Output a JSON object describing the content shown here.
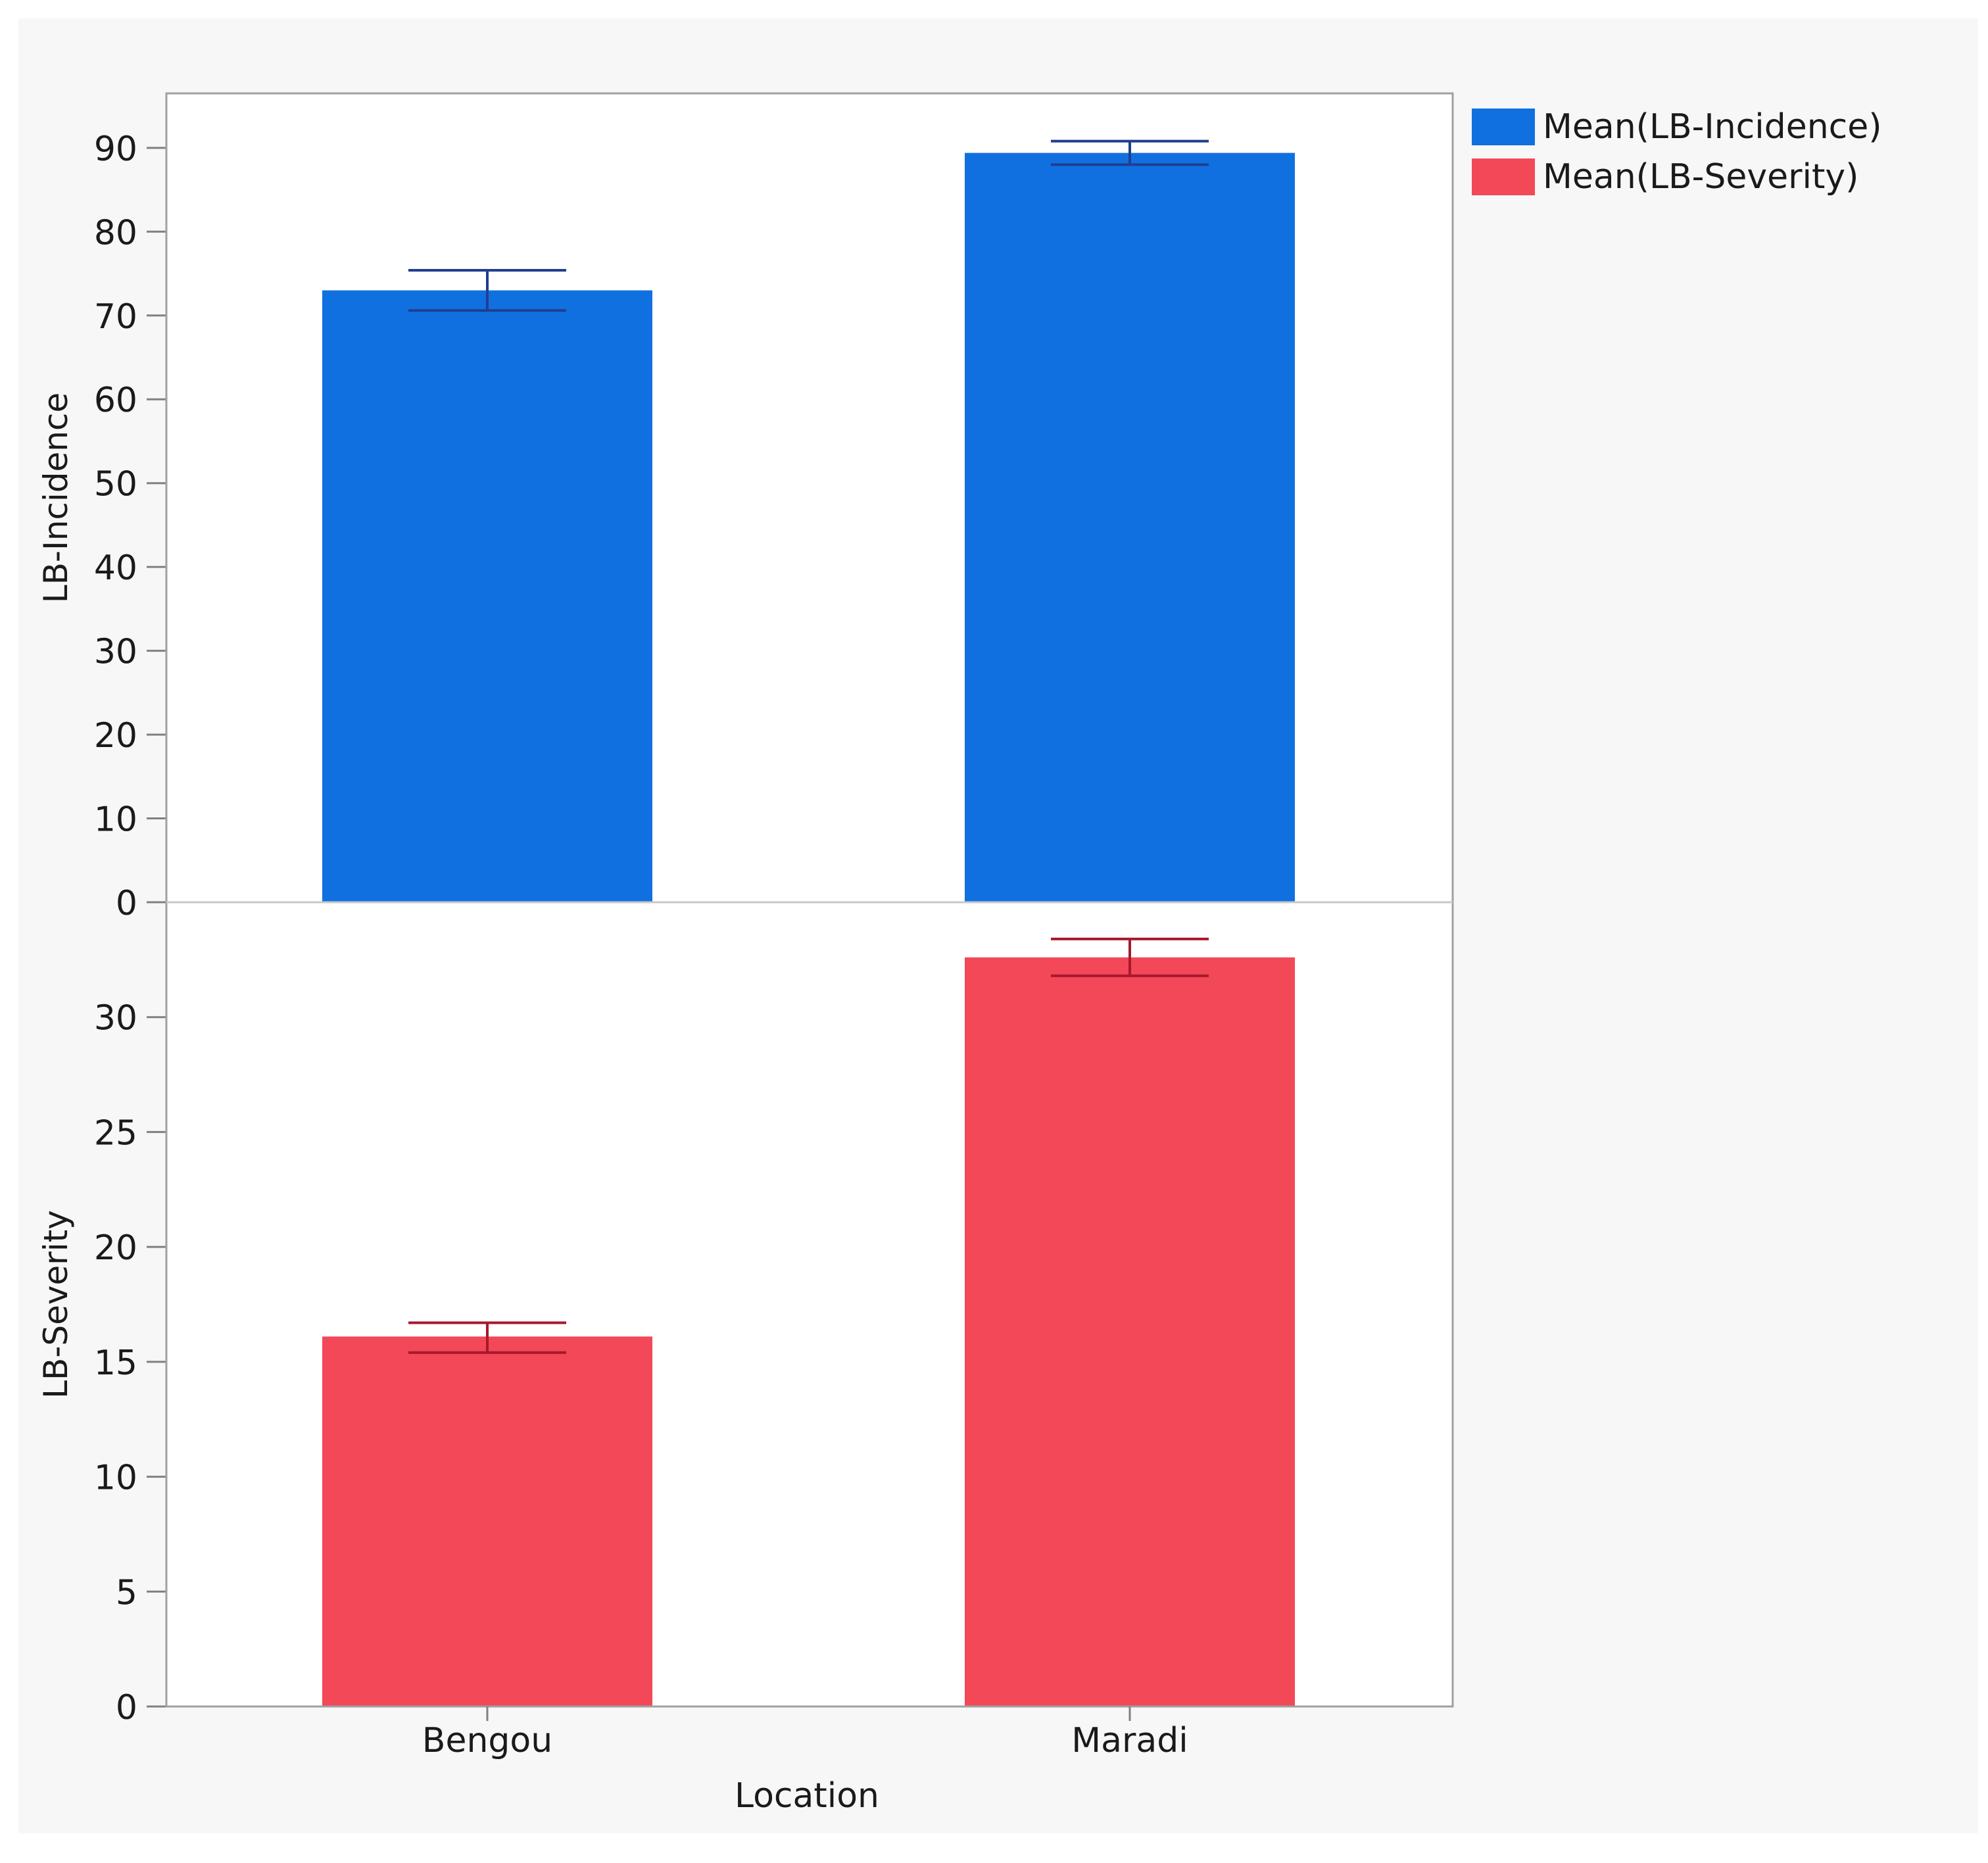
{
  "chart_data": {
    "type": "bar",
    "categories": [
      "Bengou",
      "Maradi"
    ],
    "xlabel": "Location",
    "legend": {
      "placement": "top-right",
      "entries": [
        {
          "label": "Mean(LB-Incidence)",
          "color": "#1170e0"
        },
        {
          "label": "Mean(LB-Severity)",
          "color": "#f24858"
        }
      ]
    },
    "panels": [
      {
        "ylabel": "LB-Incidence",
        "ylim": [
          0,
          96.5
        ],
        "yticks": [
          0,
          10,
          20,
          30,
          40,
          50,
          60,
          70,
          80,
          90
        ],
        "color": "#1170e0",
        "error_color": "#1f3f8f",
        "values": [
          73.0,
          89.4
        ],
        "error_low": [
          70.6,
          88.0
        ],
        "error_high": [
          75.4,
          90.8
        ]
      },
      {
        "ylabel": "LB-Severity",
        "ylim": [
          0,
          35
        ],
        "yticks": [
          0,
          5,
          10,
          15,
          20,
          25,
          30
        ],
        "color": "#f24858",
        "error_color": "#a8182c",
        "values": [
          16.1,
          32.6
        ],
        "error_low": [
          15.4,
          31.8
        ],
        "error_high": [
          16.7,
          33.4
        ]
      }
    ],
    "grid": false
  }
}
